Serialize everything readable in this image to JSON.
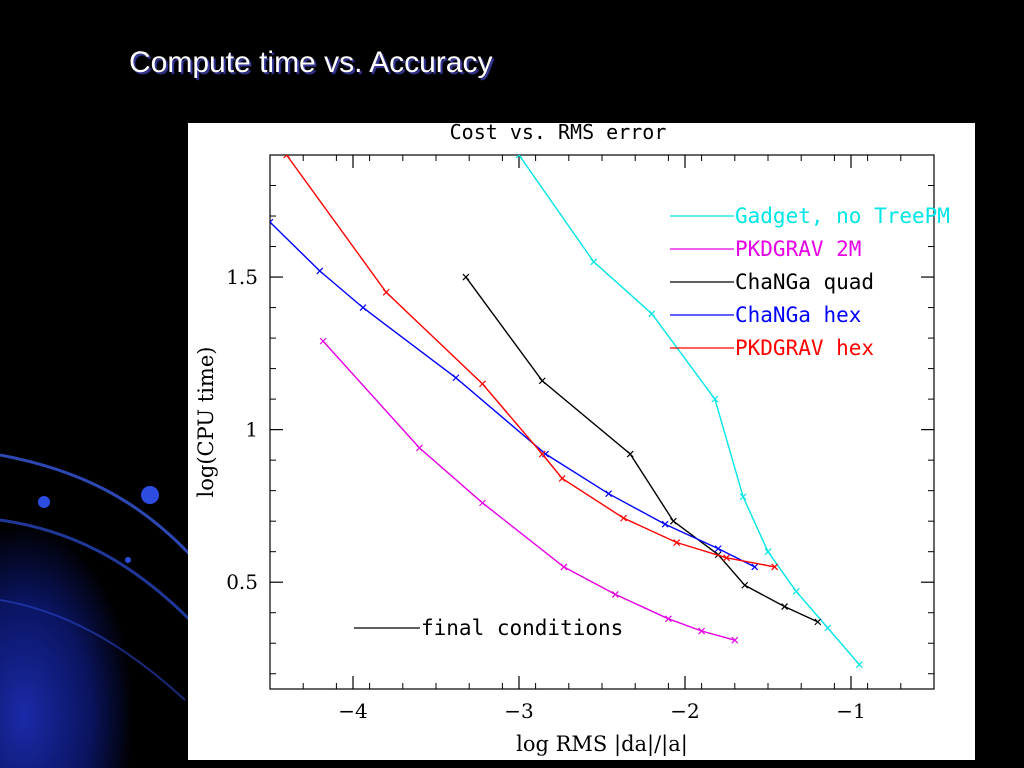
{
  "slide": {
    "title": "Compute time vs. Accuracy"
  },
  "chart_data": {
    "type": "line",
    "title": "Cost vs. RMS error",
    "xlabel": "log RMS |da|/|a|",
    "ylabel": "log(CPU time)",
    "xlim": [
      -4.5,
      -0.5
    ],
    "ylim": [
      0.15,
      1.9
    ],
    "x_ticks": [
      -4,
      -3,
      -2,
      -1
    ],
    "x_tick_labels": [
      "−4",
      "−3",
      "−2",
      "−1"
    ],
    "y_ticks": [
      0.5,
      1,
      1.5
    ],
    "y_tick_labels": [
      "0.5",
      "1",
      "1.5"
    ],
    "legend_position": "top-right",
    "annotation": "final conditions",
    "annotation_color": "#000000",
    "series": [
      {
        "name": "Gadget, no TreePM",
        "color": "#00e5e5",
        "points": [
          [
            -3.0,
            1.9
          ],
          [
            -2.55,
            1.55
          ],
          [
            -2.2,
            1.38
          ],
          [
            -1.82,
            1.1
          ],
          [
            -1.65,
            0.78
          ],
          [
            -1.5,
            0.6
          ],
          [
            -1.33,
            0.47
          ],
          [
            -1.14,
            0.35
          ],
          [
            -0.95,
            0.23
          ]
        ]
      },
      {
        "name": "PKDGRAV 2M",
        "color": "#e600e6",
        "points": [
          [
            -4.18,
            1.29
          ],
          [
            -3.6,
            0.94
          ],
          [
            -3.22,
            0.76
          ],
          [
            -2.73,
            0.55
          ],
          [
            -2.42,
            0.46
          ],
          [
            -2.1,
            0.38
          ],
          [
            -1.9,
            0.34
          ],
          [
            -1.7,
            0.31
          ]
        ]
      },
      {
        "name": "ChaNGa quad",
        "color": "#000000",
        "points": [
          [
            -3.32,
            1.5
          ],
          [
            -2.86,
            1.16
          ],
          [
            -2.33,
            0.92
          ],
          [
            -2.07,
            0.7
          ],
          [
            -1.8,
            0.59
          ],
          [
            -1.64,
            0.49
          ],
          [
            -1.4,
            0.42
          ],
          [
            -1.2,
            0.37
          ]
        ]
      },
      {
        "name": "ChaNGa hex",
        "color": "#0000ff",
        "points": [
          [
            -4.5,
            1.68
          ],
          [
            -4.2,
            1.52
          ],
          [
            -3.94,
            1.4
          ],
          [
            -3.38,
            1.17
          ],
          [
            -2.84,
            0.92
          ],
          [
            -2.46,
            0.79
          ],
          [
            -2.12,
            0.69
          ],
          [
            -1.8,
            0.61
          ],
          [
            -1.58,
            0.55
          ]
        ]
      },
      {
        "name": "PKDGRAV hex",
        "color": "#ff0000",
        "points": [
          [
            -4.4,
            1.9
          ],
          [
            -3.8,
            1.45
          ],
          [
            -3.22,
            1.15
          ],
          [
            -2.86,
            0.92
          ],
          [
            -2.74,
            0.84
          ],
          [
            -2.37,
            0.71
          ],
          [
            -2.05,
            0.63
          ],
          [
            -1.75,
            0.58
          ],
          [
            -1.46,
            0.55
          ]
        ]
      }
    ]
  }
}
